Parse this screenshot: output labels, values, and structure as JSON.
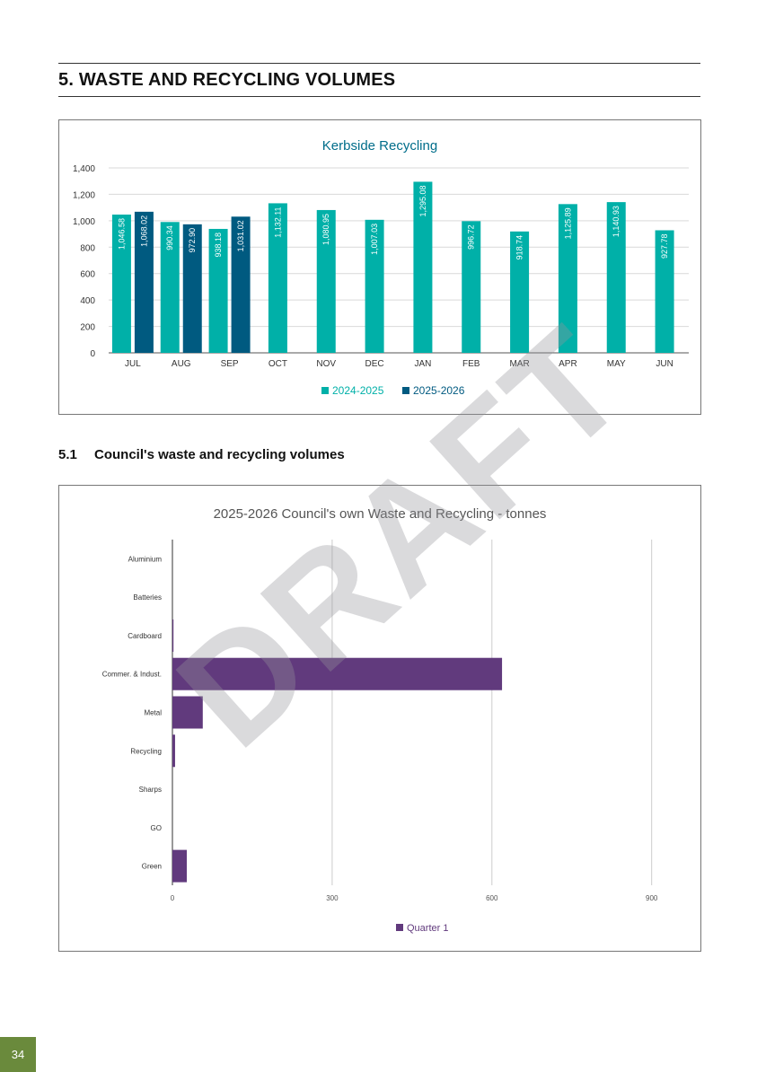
{
  "section_title": "5. WASTE AND RECYCLING VOLUMES",
  "subsection": {
    "number": "5.1",
    "title": "Council's waste and recycling volumes"
  },
  "page_number": "34",
  "watermark": "DRAFT",
  "colors": {
    "series_2024": "#00b0a8",
    "series_2025": "#005a80",
    "quarter1": "#613a7d",
    "footer_green": "#6a8a3c",
    "title_teal": "#006d8a"
  },
  "chart_data": [
    {
      "type": "bar",
      "title": "Kerbside Recycling",
      "categories": [
        "JUL",
        "AUG",
        "SEP",
        "OCT",
        "NOV",
        "DEC",
        "JAN",
        "FEB",
        "MAR",
        "APR",
        "MAY",
        "JUN"
      ],
      "series": [
        {
          "name": "2024-2025",
          "values": [
            1046.58,
            990.34,
            938.18,
            1132.11,
            1080.95,
            1007.03,
            1295.08,
            996.72,
            918.74,
            1125.89,
            1140.93,
            927.78
          ],
          "labels": [
            "1,046.58",
            "990.34",
            "938.18",
            "1,132.11",
            "1,080.95",
            "1,007.03",
            "1,295.08",
            "996.72",
            "918.74",
            "1,125.89",
            "1,140.93",
            "927.78"
          ]
        },
        {
          "name": "2025-2026",
          "values": [
            1068.02,
            972.9,
            1031.02,
            null,
            null,
            null,
            null,
            null,
            null,
            null,
            null,
            null
          ],
          "labels": [
            "1,068.02",
            "972.90",
            "1,031.02"
          ]
        }
      ],
      "yticks": [
        "0",
        "200",
        "400",
        "600",
        "800",
        "1,000",
        "1,200",
        "1,400"
      ],
      "ylim": [
        0,
        1400
      ],
      "grid": true,
      "legend": "bottom"
    },
    {
      "type": "bar",
      "orientation": "horizontal",
      "title": "2025-2026 Council's own Waste and Recycling - tonnes",
      "categories": [
        "Aluminium",
        "Batteries",
        "Cardboard",
        "Commer. & Indust.",
        "Metal",
        "Recycling",
        "Sharps",
        "GO",
        "Green"
      ],
      "series": [
        {
          "name": "Quarter 1",
          "values": [
            0,
            0,
            2,
            619,
            57,
            5,
            0,
            0,
            27
          ]
        }
      ],
      "xticks": [
        "0",
        "300",
        "600",
        "900"
      ],
      "xlim": [
        0,
        960
      ],
      "grid": true,
      "legend": "bottom"
    }
  ]
}
